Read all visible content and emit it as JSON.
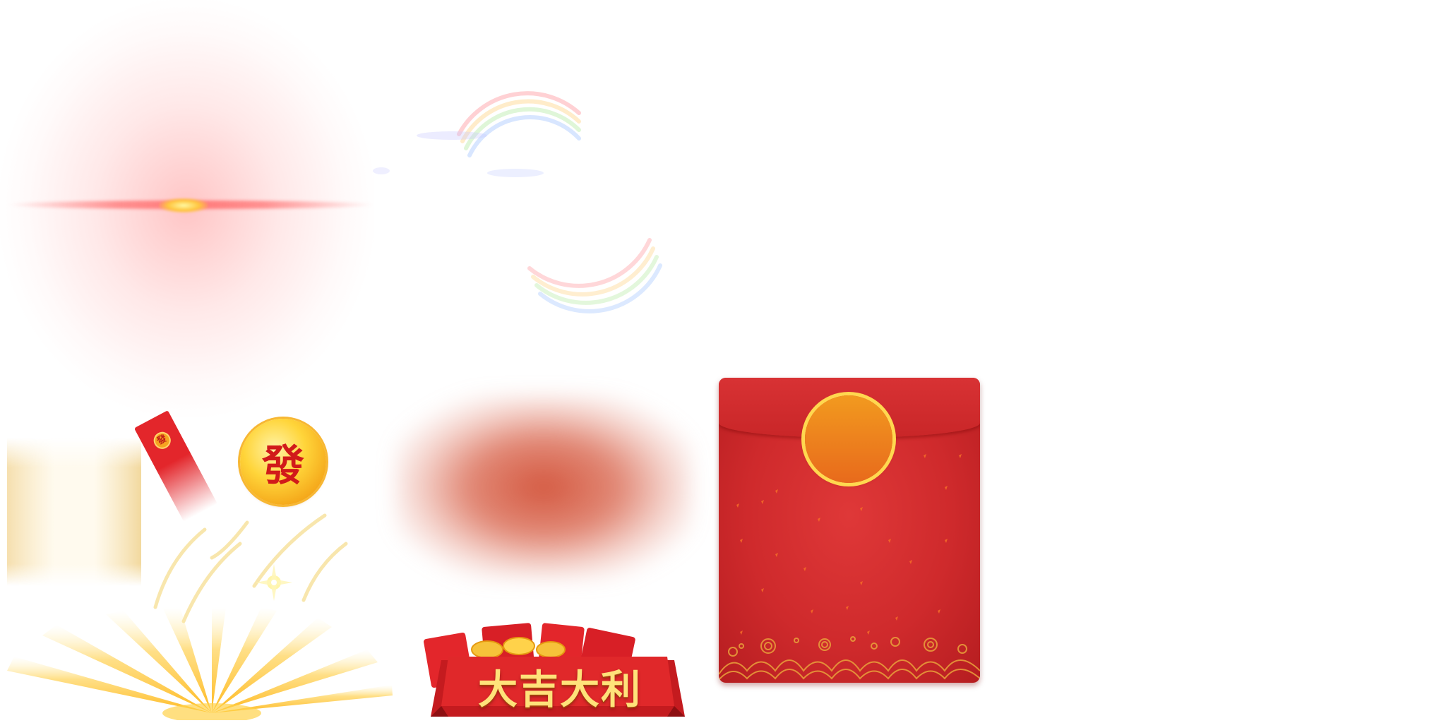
{
  "sprite_sheet": {
    "sprites": [
      {
        "name": "lens-flare",
        "color": "#ff7a7a"
      },
      {
        "name": "rainbow-arcs"
      },
      {
        "name": "light-beams",
        "color": "#f6d58a"
      },
      {
        "name": "mini-envelope",
        "seal_text": "發",
        "color": "#e3262b"
      },
      {
        "name": "gold-coin",
        "text": "發",
        "color": "#ffd53a"
      },
      {
        "name": "sparkles",
        "color": "#f3d36b"
      },
      {
        "name": "sunburst",
        "color": "#ffc52a"
      },
      {
        "name": "red-smoke",
        "color": "#d25037"
      },
      {
        "name": "lucky-banner",
        "text": "大吉大利",
        "color": "#e0282a"
      },
      {
        "name": "big-envelope",
        "color": "#cf2a2c",
        "seal_color": "#f2901f"
      }
    ]
  },
  "coin": {
    "char": "發"
  },
  "mini_envelope": {
    "seal_char": "發"
  },
  "banner": {
    "text": "大吉大利"
  }
}
